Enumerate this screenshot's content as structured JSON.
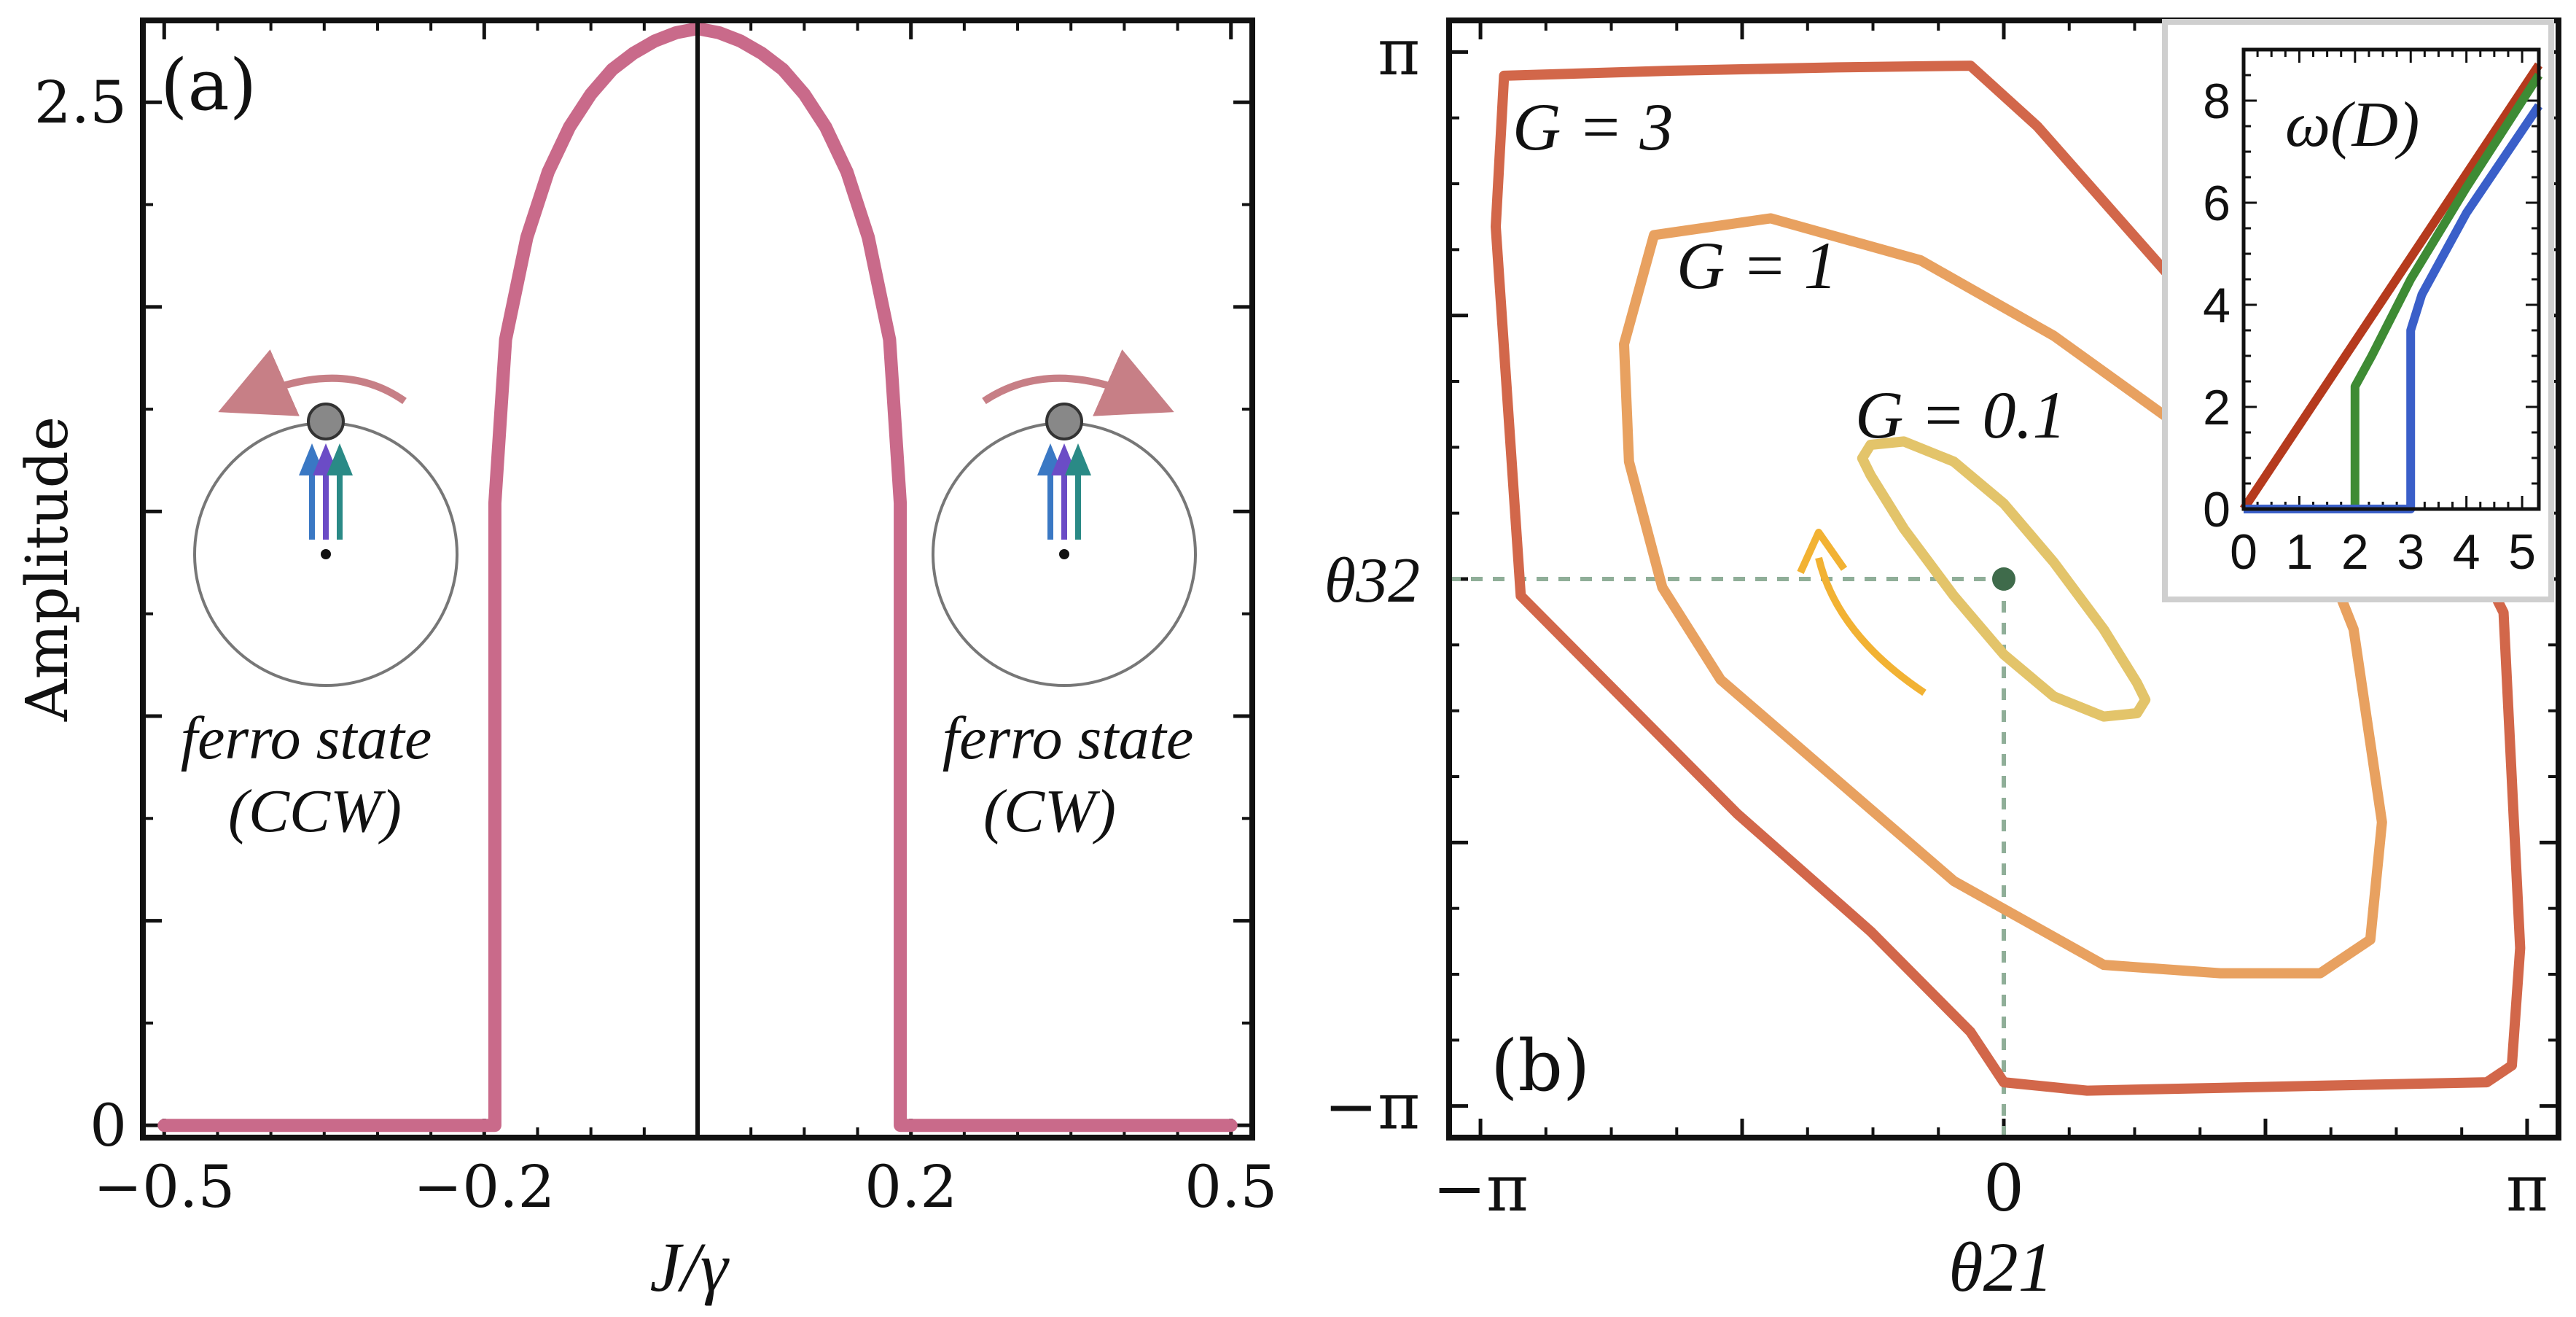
{
  "chart_data": [
    {
      "type": "line",
      "panel_label": "(a)",
      "xlabel": "J/γ",
      "ylabel": "Amplitude",
      "xlim": [
        -0.52,
        0.52
      ],
      "ylim": [
        -0.03,
        2.7
      ],
      "x_ticks": [
        {
          "value": -0.5,
          "label": "−0.5"
        },
        {
          "value": -0.2,
          "label": "−0.2"
        },
        {
          "value": 0.2,
          "label": "0.2"
        },
        {
          "value": 0.5,
          "label": "0.5"
        }
      ],
      "y_ticks": [
        {
          "value": 0,
          "label": "0"
        },
        {
          "value": 2.5,
          "label": "2.5"
        }
      ],
      "vertical_line_x": 0,
      "series": [
        {
          "color": "#c96a8a",
          "x": [
            -0.5,
            -0.19,
            -0.19,
            -0.18,
            -0.16,
            -0.14,
            -0.12,
            -0.1,
            -0.08,
            -0.06,
            -0.04,
            -0.02,
            0.0,
            0.02,
            0.04,
            0.06,
            0.08,
            0.1,
            0.12,
            0.14,
            0.16,
            0.18,
            0.19,
            0.19,
            0.5
          ],
          "y": [
            0,
            0,
            1.52,
            1.92,
            2.17,
            2.33,
            2.44,
            2.52,
            2.58,
            2.62,
            2.65,
            2.67,
            2.68,
            2.67,
            2.65,
            2.62,
            2.58,
            2.52,
            2.44,
            2.33,
            2.17,
            1.92,
            1.52,
            0,
            0
          ]
        }
      ],
      "annotations": [
        {
          "line1": "ferro state",
          "line2": "(CCW)",
          "rotation": "counter-clockwise"
        },
        {
          "line1": "ferro state",
          "line2": "(CW)",
          "rotation": "clockwise"
        }
      ]
    },
    {
      "type": "line",
      "panel_label": "(b)",
      "xlabel": "θ21",
      "ylabel": "θ32",
      "xlim": [
        -3.33,
        3.33
      ],
      "ylim": [
        -3.33,
        3.33
      ],
      "x_ticks": [
        {
          "value": -3.14159,
          "label": "−π"
        },
        {
          "value": 0,
          "label": "0"
        },
        {
          "value": 3.14159,
          "label": "π"
        }
      ],
      "y_ticks": [
        {
          "value": -3.14159,
          "label": "−π"
        },
        {
          "value": 0,
          "label": "θ32"
        },
        {
          "value": 3.14159,
          "label": "π"
        }
      ],
      "fixed_point": {
        "x": 0,
        "y": 0,
        "color": "#3f6b4b"
      },
      "series": [
        {
          "name": "G = 0.1",
          "color": "#e3c46a",
          "x": [
            -0.85,
            -0.8,
            -0.6,
            -0.3,
            0.0,
            0.3,
            0.6,
            0.8,
            0.85,
            0.8,
            0.6,
            0.3,
            0.0,
            -0.3,
            -0.6,
            -0.8,
            -0.85
          ],
          "y": [
            0.72,
            0.8,
            0.82,
            0.7,
            0.45,
            0.1,
            -0.3,
            -0.62,
            -0.72,
            -0.8,
            -0.82,
            -0.7,
            -0.45,
            -0.1,
            0.3,
            0.62,
            0.72
          ]
        },
        {
          "name": "G = 1",
          "color": "#e8a160",
          "x": [
            -2.28,
            -2.1,
            -1.4,
            -0.5,
            0.3,
            1.0,
            1.5,
            1.9,
            2.1,
            2.27,
            2.2,
            1.9,
            1.3,
            0.6,
            -0.3,
            -1.0,
            -1.7,
            -2.05,
            -2.25,
            -2.28
          ],
          "y": [
            1.4,
            2.05,
            2.15,
            1.9,
            1.45,
            0.95,
            0.55,
            0.2,
            -0.3,
            -1.45,
            -2.15,
            -2.35,
            -2.35,
            -2.3,
            -1.8,
            -1.2,
            -0.6,
            -0.05,
            0.7,
            1.4
          ]
        },
        {
          "name": "G = 3",
          "color": "#d2674a",
          "x": [
            -3.05,
            -3.0,
            -2.0,
            -1.0,
            -0.2,
            0.2,
            1.0,
            2.0,
            2.8,
            3.0,
            3.1,
            3.05,
            2.9,
            0.5,
            0.0,
            -0.2,
            -0.8,
            -1.6,
            -2.4,
            -2.9,
            -3.05
          ],
          "y": [
            2.1,
            3.0,
            3.03,
            3.05,
            3.06,
            2.7,
            1.8,
            0.9,
            0.2,
            -0.2,
            -2.2,
            -2.9,
            -3.0,
            -3.05,
            -3.0,
            -2.7,
            -2.1,
            -1.4,
            -0.6,
            -0.1,
            2.1
          ]
        }
      ],
      "annotations": [
        {
          "text": "G = 3"
        },
        {
          "text": "G = 1"
        },
        {
          "text": "G = 0.1"
        }
      ],
      "inset": {
        "title": "ω(D)",
        "xlim": [
          0,
          5.3
        ],
        "ylim": [
          0,
          9
        ],
        "x_ticks": [
          0,
          1,
          2,
          3,
          4,
          5
        ],
        "y_ticks": [
          0,
          2,
          4,
          6,
          8
        ],
        "series": [
          {
            "color": "#b53a1d",
            "x": [
              0,
              5.3
            ],
            "y": [
              0,
              8.7
            ]
          },
          {
            "color": "#3e8b34",
            "x": [
              0,
              2.0,
              2.0,
              2.3,
              3.0,
              4.0,
              5.3
            ],
            "y": [
              0,
              0,
              2.4,
              3.0,
              4.5,
              6.3,
              8.5
            ]
          },
          {
            "color": "#3a5fc9",
            "x": [
              0,
              3.0,
              3.0,
              3.2,
              4.0,
              5.3
            ],
            "y": [
              0,
              0,
              3.5,
              4.2,
              5.8,
              7.9
            ]
          }
        ]
      }
    }
  ]
}
